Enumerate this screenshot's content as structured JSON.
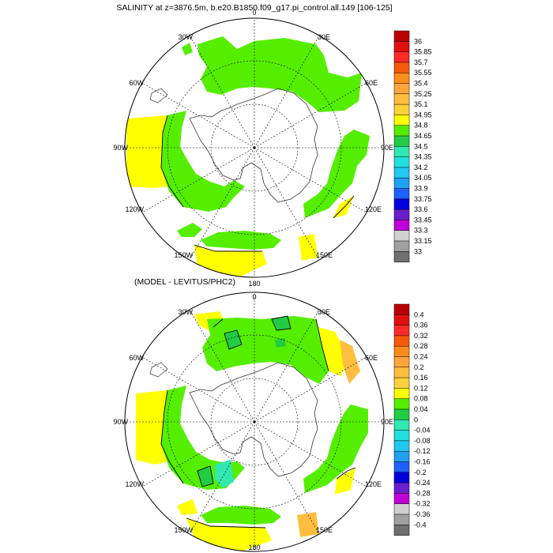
{
  "panels": [
    {
      "id": "salinity",
      "title": "SALINITY at z=3876.5m, b.e20.B1850.f09_g17.pi_control.all.149 [106-125]",
      "lon_labels": [
        "0",
        "30E",
        "60E",
        "90E",
        "120E",
        "150E",
        "180",
        "150W",
        "120W",
        "90W",
        "60W",
        "30W"
      ],
      "colorbar": {
        "labels": [
          "36",
          "35.85",
          "35.7",
          "35.55",
          "35.4",
          "35.25",
          "35.1",
          "34.95",
          "34.8",
          "34.65",
          "34.5",
          "34.35",
          "34.2",
          "34.05",
          "33.9",
          "33.75",
          "33.6",
          "33.45",
          "33.3",
          "33.15",
          "33"
        ],
        "colors": [
          "#b80000",
          "#e01010",
          "#ff2a2a",
          "#f55a0a",
          "#ff8c1a",
          "#ffa53c",
          "#ffbe40",
          "#ffd23c",
          "#ffff00",
          "#55ee00",
          "#22cc44",
          "#30e8b0",
          "#22e0e0",
          "#22c8f0",
          "#1fa0f0",
          "#2060ff",
          "#0000dd",
          "#6a1fcc",
          "#c000d8",
          "#d0d0d0",
          "#a0a0a0",
          "#707070"
        ]
      },
      "field_colors": {
        "main": "#55ee00",
        "high": "#ffff00",
        "low": "#ffd23c"
      }
    },
    {
      "id": "difference",
      "title": "(MODEL - LEVITUS/PHC2)",
      "lon_labels": [
        "0",
        "30E",
        "60E",
        "90E",
        "120E",
        "150E",
        "180",
        "150W",
        "120W",
        "90W",
        "60W",
        "30W"
      ],
      "colorbar": {
        "labels": [
          "0.4",
          "0.36",
          "0.32",
          "0.28",
          "0.24",
          "0.2",
          "0.16",
          "0.12",
          "0.08",
          "0.04",
          "0",
          "-0.04",
          "-0.08",
          "-0.12",
          "-0.16",
          "-0.2",
          "-0.24",
          "-0.28",
          "-0.32",
          "-0.36",
          "-0.4"
        ],
        "colors": [
          "#b80000",
          "#e01010",
          "#ff2a2a",
          "#f55a0a",
          "#ff8c1a",
          "#ffa53c",
          "#ffbe40",
          "#ffd23c",
          "#ffff00",
          "#55ee00",
          "#22cc44",
          "#30e8b0",
          "#22e0e0",
          "#22c8f0",
          "#1fa0f0",
          "#2060ff",
          "#0000dd",
          "#6a1fcc",
          "#c000d8",
          "#d0d0d0",
          "#a0a0a0",
          "#707070"
        ]
      },
      "field_colors": {
        "main": "#55ee00",
        "high": "#ffff00",
        "low": "#ffd23c"
      }
    }
  ]
}
